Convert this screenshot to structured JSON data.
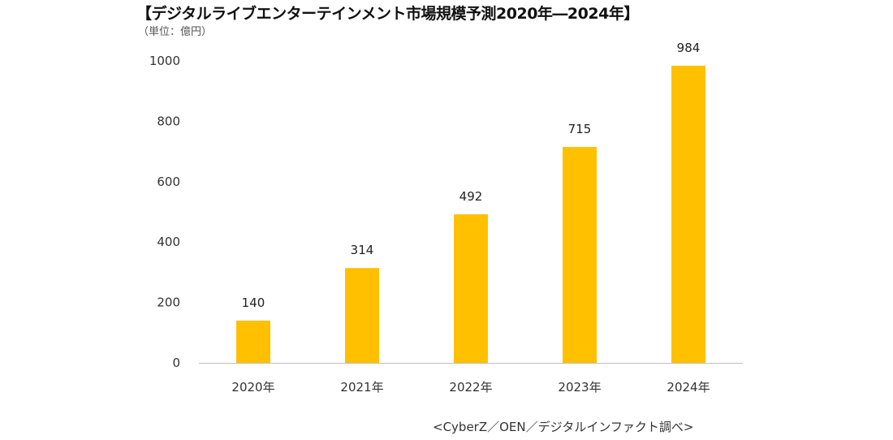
{
  "chart_data": {
    "type": "bar",
    "title": "【デジタルライブエンターテインメント市場規模予測2020年―2024年】",
    "subtitle": "（単位：億円）",
    "categories": [
      "2020年",
      "2021年",
      "2022年",
      "2023年",
      "2024年"
    ],
    "values": [
      140,
      314,
      492,
      715,
      984
    ],
    "data_labels": [
      "140",
      "314",
      "492",
      "715",
      "984"
    ],
    "xlabel": "",
    "ylabel": "",
    "ylim": [
      0,
      1000
    ],
    "yticks": [
      0,
      200,
      400,
      600,
      800,
      1000
    ],
    "ytick_labels": [
      "0",
      "200",
      "400",
      "600",
      "800",
      "1000"
    ],
    "grid": false,
    "legend": "none",
    "bar_color": "#FFC000",
    "source": "<CyberZ／OEN／デジタルインファクト調べ>"
  }
}
